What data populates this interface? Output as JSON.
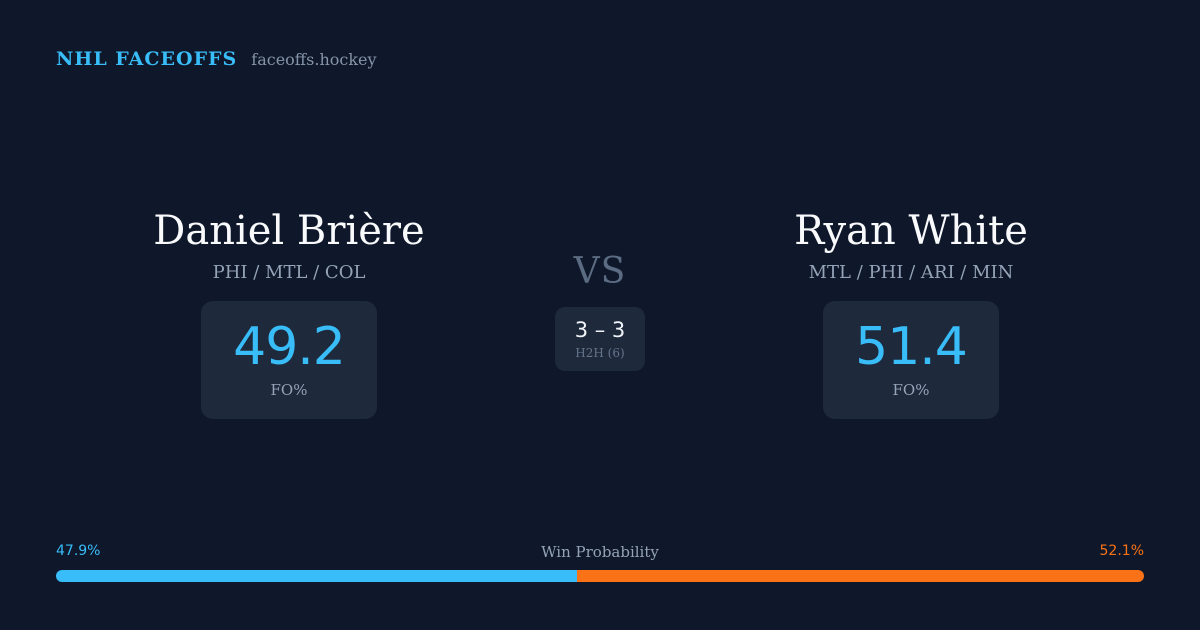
{
  "header": {
    "brand": "NHL FACEOFFS",
    "domain": "faceoffs.hockey"
  },
  "player_left": {
    "name": "Daniel Brière",
    "teams": "PHI / MTL / COL",
    "fo_pct": "49.2",
    "fo_label": "FO%"
  },
  "player_right": {
    "name": "Ryan White",
    "teams": "MTL / PHI / ARI / MIN",
    "fo_pct": "51.4",
    "fo_label": "FO%"
  },
  "versus": {
    "label": "VS",
    "h2h_score": "3 – 3",
    "h2h_label": "H2H (6)"
  },
  "win_probability": {
    "title": "Win Probability",
    "left_label": "47.9%",
    "right_label": "52.1%",
    "left_value": 47.9,
    "right_value": 52.1
  },
  "colors": {
    "background": "#0f172a",
    "accent_blue": "#38bdf8",
    "accent_orange": "#f97316",
    "card": "#1e293b"
  }
}
